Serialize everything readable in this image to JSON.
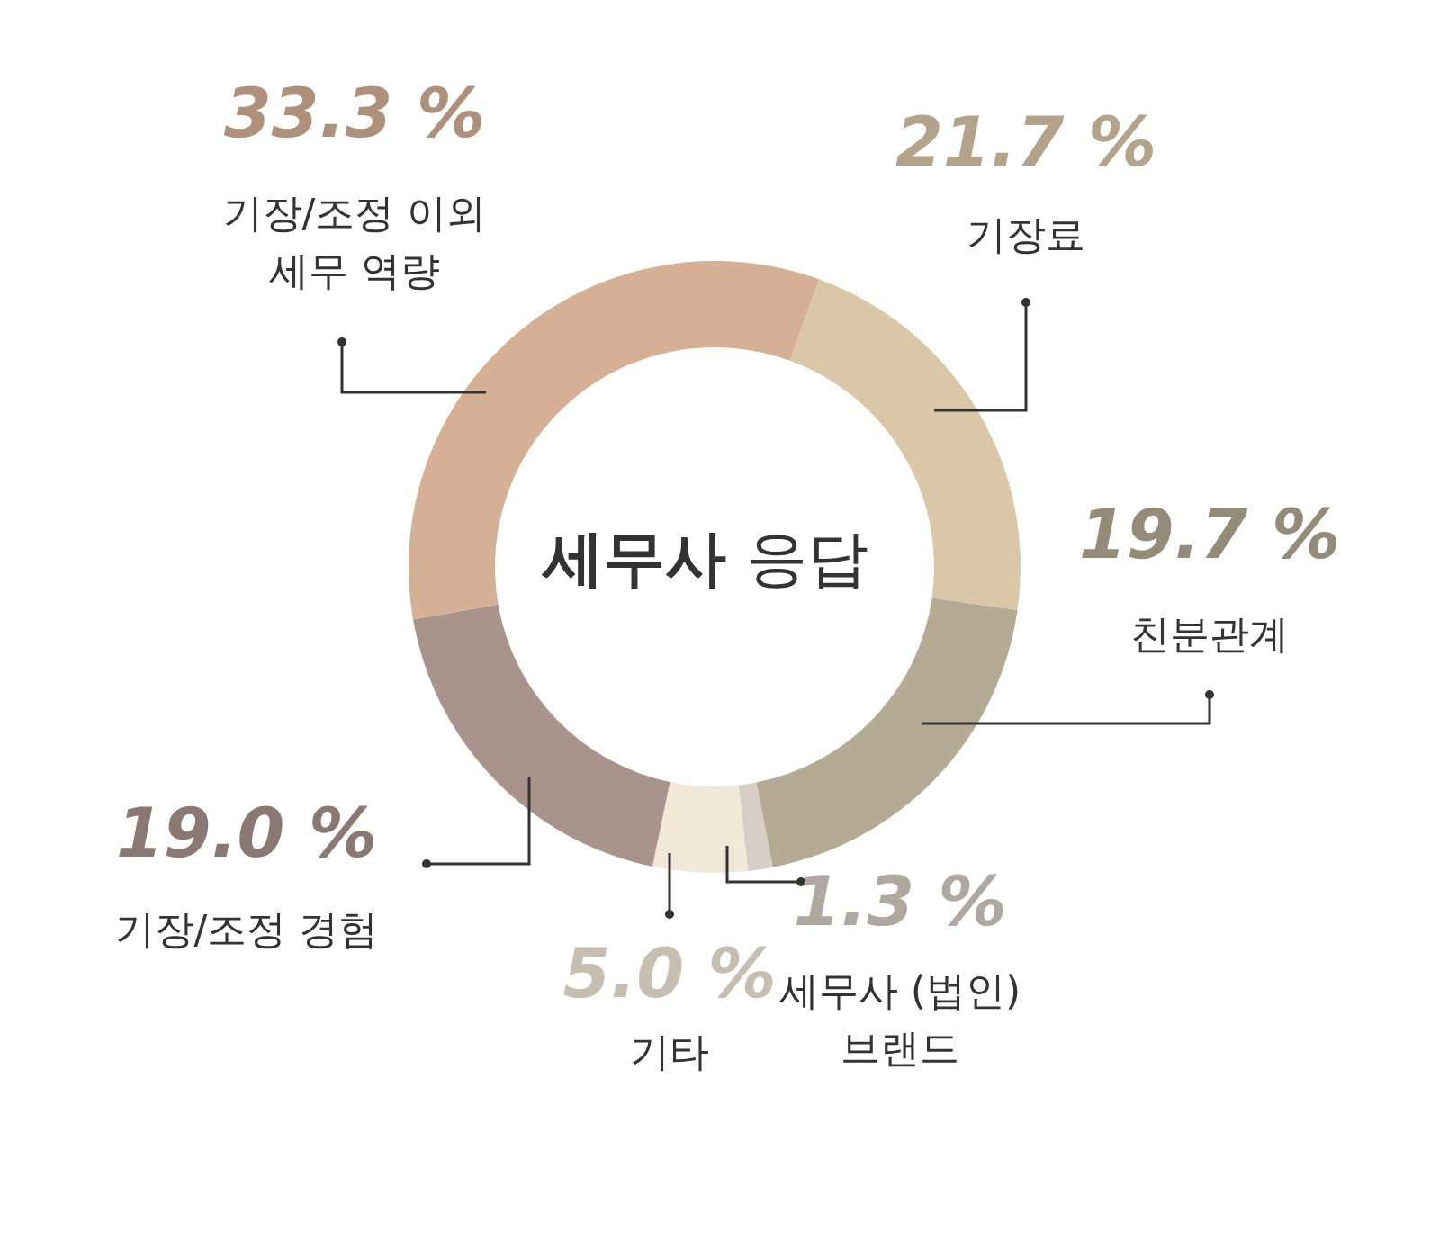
{
  "chart_data": {
    "type": "donut",
    "title": "세무사 응답",
    "categories": [
      "기장료",
      "친분관계",
      "세무사 (법인) 브랜드",
      "기타",
      "기장/조정 경험",
      "기장/조정 이외 세무 역량"
    ],
    "values": [
      21.7,
      19.7,
      1.3,
      5.0,
      19.0,
      33.3
    ],
    "value_labels": [
      "21.7 %",
      "19.7 %",
      "1.3 %",
      "5.0 %",
      "19.0 %",
      "33.3 %"
    ],
    "colors": [
      "#d9c7a8",
      "#b5aa94",
      "#d6cdc4",
      "#f2e8d8",
      "#a8948c",
      "#d6b095"
    ],
    "legend": false
  }
}
